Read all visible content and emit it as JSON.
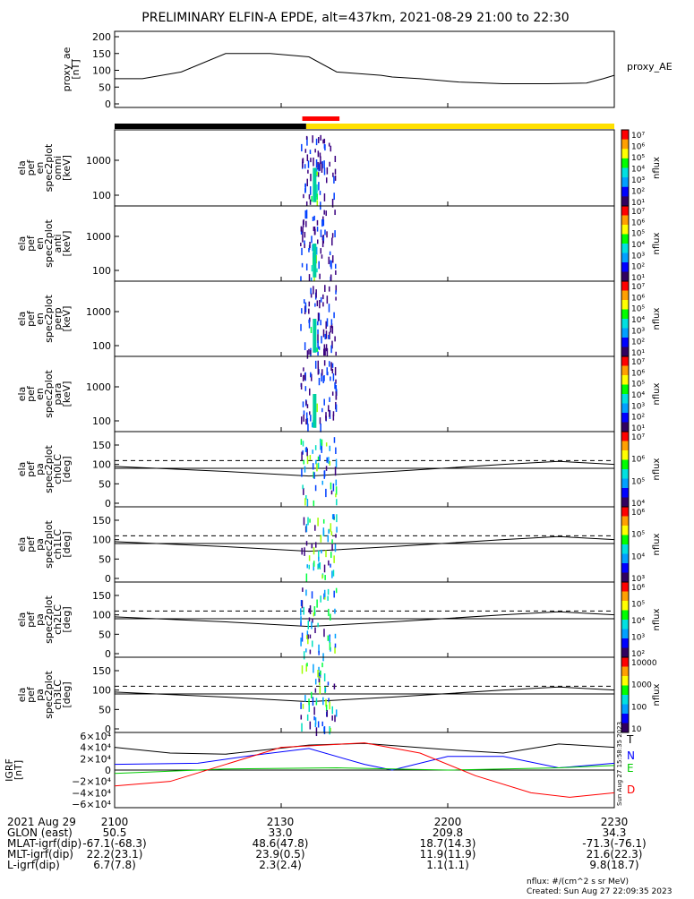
{
  "title": "PRELIMINARY ELFIN-A EPDE, alt=437km, 2021-08-29 21:00 to 22:30",
  "chart_data": {
    "type": "line",
    "title": "PRELIMINARY ELFIN-A EPDE, alt=437km, 2021-08-29 21:00 to 22:30",
    "x_range_min": [
      0,
      90
    ],
    "x_ticks": [
      0,
      30,
      60,
      90
    ],
    "panels": [
      {
        "key": "ae",
        "ylabel": [
          "proxy_ae",
          "[nT]"
        ],
        "legend": "proxy_AE",
        "ylim": [
          0,
          200
        ],
        "yticks": [
          "0",
          "50",
          "100",
          "150",
          "200"
        ],
        "series": {
          "x": [
            0,
            5,
            12,
            20,
            28,
            35,
            40,
            48,
            50,
            55,
            62,
            70,
            78,
            85,
            88,
            90
          ],
          "y": [
            75,
            75,
            95,
            150,
            150,
            140,
            95,
            85,
            80,
            75,
            65,
            60,
            60,
            62,
            75,
            85
          ]
        }
      },
      {
        "key": "omni",
        "ylabel": [
          "ela",
          "pef",
          "en",
          "spec2plot",
          "omni",
          "[keV]"
        ],
        "yticks": [
          "1000",
          "100"
        ]
      },
      {
        "key": "anti",
        "ylabel": [
          "ela",
          "pef",
          "en",
          "spec2plot",
          "anti",
          "[keV]"
        ],
        "yticks": [
          "1000",
          "100"
        ]
      },
      {
        "key": "perp",
        "ylabel": [
          "ela",
          "pef",
          "en",
          "spec2plot",
          "perp",
          "[keV]"
        ],
        "yticks": [
          "1000",
          "100"
        ]
      },
      {
        "key": "para",
        "ylabel": [
          "ela",
          "pef",
          "en",
          "spec2plot",
          "para",
          "[keV]"
        ],
        "yticks": [
          "1000",
          "100"
        ]
      },
      {
        "key": "ch0",
        "ylabel": [
          "ela",
          "pef",
          "pa",
          "spec2plot",
          "ch0LC",
          "[deg]"
        ],
        "yticks": [
          "150",
          "100",
          "50",
          "0"
        ]
      },
      {
        "key": "ch1",
        "ylabel": [
          "ela",
          "pef",
          "pa",
          "spec2plot",
          "ch1LC",
          "[deg]"
        ],
        "yticks": [
          "150",
          "100",
          "50",
          "0"
        ]
      },
      {
        "key": "ch2",
        "ylabel": [
          "ela",
          "pef",
          "pa",
          "spec2plot",
          "ch2LC",
          "[deg]"
        ],
        "yticks": [
          "150",
          "100",
          "50",
          "0"
        ]
      },
      {
        "key": "ch3",
        "ylabel": [
          "ela",
          "pef",
          "pa",
          "spec2plot",
          "ch3LC",
          "[deg]"
        ],
        "yticks": [
          "150",
          "100",
          "50",
          "0"
        ]
      },
      {
        "key": "igrf",
        "ylabel": [
          "IGRF",
          "[nT]"
        ],
        "yticks": [
          "6×10⁴",
          "4×10⁴",
          "2×10⁴",
          "0",
          "−2×10⁴",
          "−4×10⁴",
          "−6×10⁴"
        ],
        "legend": [
          {
            "name": "T",
            "color": "#000000"
          },
          {
            "name": "N",
            "color": "#0000ff"
          },
          {
            "name": "E",
            "color": "#00cc00"
          },
          {
            "name": "D",
            "color": "#ff0000"
          }
        ]
      }
    ],
    "colorbars": [
      {
        "label": "nflux",
        "ticks": [
          "10⁷",
          "10⁶",
          "10⁵",
          "10⁴",
          "10³",
          "10²",
          "10¹"
        ]
      },
      {
        "label": "nflux",
        "ticks": [
          "10⁷",
          "10⁶",
          "10⁵",
          "10⁴",
          "10³",
          "10²",
          "10¹"
        ]
      },
      {
        "label": "nflux",
        "ticks": [
          "10⁷",
          "10⁶",
          "10⁵",
          "10⁴",
          "10³",
          "10²",
          "10¹"
        ]
      },
      {
        "label": "nflux",
        "ticks": [
          "10⁷",
          "10⁶",
          "10⁵",
          "10⁴",
          "10³",
          "10²",
          "10¹"
        ]
      },
      {
        "label": "nflux",
        "ticks": [
          "10⁷",
          "10⁶",
          "10⁵",
          "10⁴"
        ]
      },
      {
        "label": "nflux",
        "ticks": [
          "10⁶",
          "10⁵",
          "10⁴",
          "10³"
        ]
      },
      {
        "label": "nflux",
        "ticks": [
          "10⁶",
          "10⁵",
          "10⁴",
          "10³",
          "10²"
        ]
      },
      {
        "label": "nflux",
        "ticks": [
          "10000",
          "1000",
          "100",
          "10"
        ]
      }
    ],
    "orbit_note": "Sun Aug 27 15:58:35 2023"
  },
  "footer": {
    "rows": [
      {
        "label": "2021 Aug 29",
        "values": [
          "2100",
          "2130",
          "2200",
          "2230"
        ]
      },
      {
        "label": "GLON (east)",
        "values": [
          "50.5",
          "33.0",
          "209.8",
          "34.3"
        ]
      },
      {
        "label": "MLAT-igrf(dip)",
        "values": [
          "-67.1(-68.3)",
          "48.6(47.8)",
          "18.7(14.3)",
          "-71.3(-76.1)"
        ]
      },
      {
        "label": "MLT-igrf(dip)",
        "values": [
          "22.2(23.1)",
          "23.9(0.5)",
          "11.9(11.9)",
          "21.6(22.3)"
        ]
      },
      {
        "label": "L-igrf(dip)",
        "values": [
          "6.7(7.8)",
          "2.3(2.4)",
          "1.1(1.1)",
          "9.8(18.7)"
        ]
      }
    ],
    "units": "nflux: #/(cm^2 s sr MeV)",
    "created": "Created: Sun Aug 27 22:09:35 2023"
  }
}
